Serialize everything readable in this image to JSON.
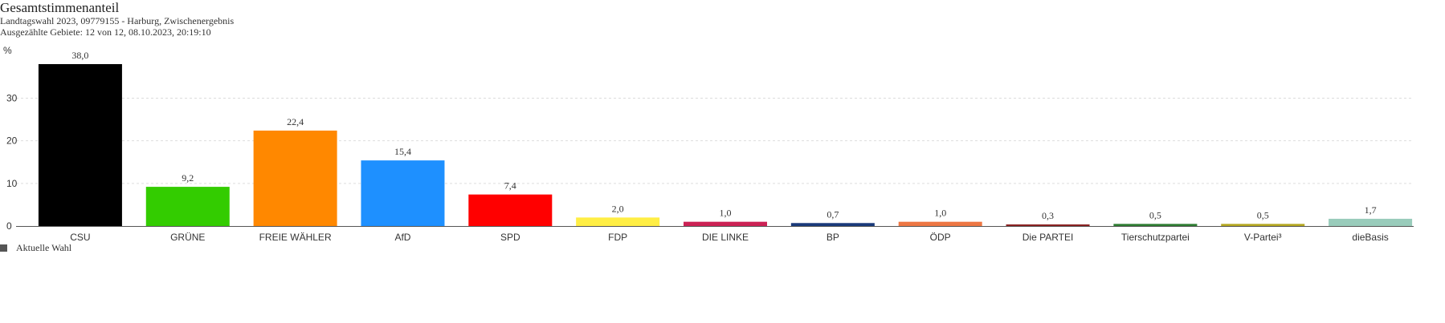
{
  "header": {
    "title": "Gesamtstimmenanteil",
    "line1": "Landtagswahl 2023, 09779155 - Harburg, Zwischenergebnis",
    "line2": "Ausgezählte Gebiete: 12 von 12, 08.10.2023, 20:19:10"
  },
  "legend": {
    "label": "Aktuelle Wahl",
    "color": "#555555"
  },
  "chart_data": {
    "type": "bar",
    "categories": [
      "CSU",
      "GRÜNE",
      "FREIE WÄHLER",
      "AfD",
      "SPD",
      "FDP",
      "DIE LINKE",
      "BP",
      "ÖDP",
      "Die PARTEI",
      "Tierschutzpartei",
      "V-Partei³",
      "dieBasis"
    ],
    "values": [
      38.0,
      9.2,
      22.4,
      15.4,
      7.4,
      2.0,
      1.0,
      0.7,
      1.0,
      0.3,
      0.5,
      0.5,
      1.7
    ],
    "value_labels": [
      "38,0",
      "9,2",
      "22,4",
      "15,4",
      "7,4",
      "2,0",
      "1,0",
      "0,7",
      "1,0",
      "0,3",
      "0,5",
      "0,5",
      "1,7"
    ],
    "colors": [
      "#000000",
      "#33cc00",
      "#ff8800",
      "#1e90ff",
      "#ff0000",
      "#ffee44",
      "#cc2255",
      "#1a3a7a",
      "#ee7744",
      "#8b2222",
      "#2e7d32",
      "#b5a822",
      "#99ccbb"
    ],
    "ylabel": "%",
    "yticks": [
      0,
      10,
      20,
      30
    ],
    "ylim": [
      0,
      38
    ],
    "grid": true
  }
}
